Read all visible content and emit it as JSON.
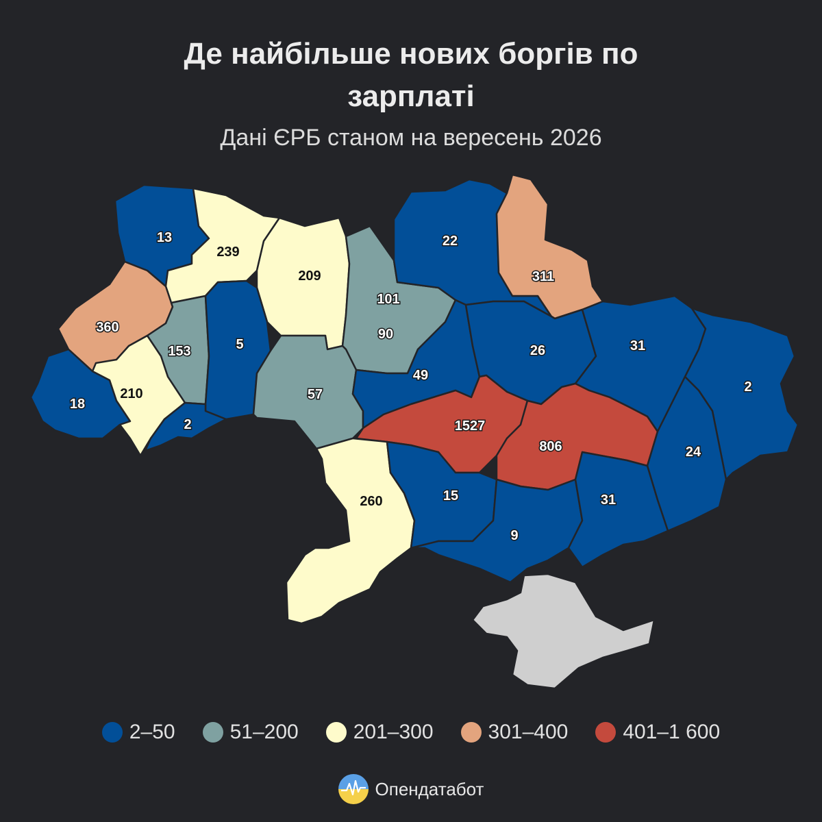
{
  "title_line1": "Де найбільше нових боргів по",
  "title_line2": "зарплаті",
  "subtitle": "Дані ЄРБ станом на вересень 2026",
  "colors": {
    "background": "#232428",
    "c2_50": "#024f98",
    "c51_200": "#7fa1a1",
    "c201_300": "#fefbcb",
    "c301_400": "#e3a47e",
    "c401_1600": "#c44a3d",
    "no_data": "#cfcfcf",
    "label_light": "#ffffff",
    "label_dark": "#111111"
  },
  "legend": [
    {
      "label": "2–50",
      "color": "#024f98"
    },
    {
      "label": "51–200",
      "color": "#7fa1a1"
    },
    {
      "label": "201–300",
      "color": "#fefbcb"
    },
    {
      "label": "301–400",
      "color": "#e3a47e"
    },
    {
      "label": "401–1 600",
      "color": "#c44a3d"
    }
  ],
  "regions": [
    {
      "id": "volyn",
      "value": 13,
      "label": "13"
    },
    {
      "id": "rivne",
      "value": 239,
      "label": "239"
    },
    {
      "id": "zhytomyr",
      "value": 209,
      "label": "209"
    },
    {
      "id": "kyiv",
      "value": 101,
      "label": "101"
    },
    {
      "id": "kyiv-city",
      "value": 90,
      "label": "90"
    },
    {
      "id": "chernihiv",
      "value": 22,
      "label": "22"
    },
    {
      "id": "sumy",
      "value": 311,
      "label": "311"
    },
    {
      "id": "lviv",
      "value": 360,
      "label": "360"
    },
    {
      "id": "ternopil",
      "value": 153,
      "label": "153"
    },
    {
      "id": "khmelnytskyi",
      "value": 5,
      "label": "5"
    },
    {
      "id": "vinnytsia",
      "value": 57,
      "label": "57"
    },
    {
      "id": "cherkasy",
      "value": 49,
      "label": "49"
    },
    {
      "id": "poltava",
      "value": 26,
      "label": "26"
    },
    {
      "id": "kharkiv",
      "value": 31,
      "label": "31"
    },
    {
      "id": "luhansk",
      "value": 2,
      "label": "2"
    },
    {
      "id": "zakarpattia",
      "value": 18,
      "label": "18"
    },
    {
      "id": "ivano-frankivsk",
      "value": 210,
      "label": "210"
    },
    {
      "id": "chernivtsi",
      "value": 2,
      "label": "2"
    },
    {
      "id": "kirovohrad",
      "value": 1527,
      "label": "1527"
    },
    {
      "id": "dnipropetrovsk",
      "value": 806,
      "label": "806"
    },
    {
      "id": "donetsk",
      "value": 24,
      "label": "24"
    },
    {
      "id": "odesa",
      "value": 260,
      "label": "260"
    },
    {
      "id": "mykolaiv",
      "value": 15,
      "label": "15"
    },
    {
      "id": "kherson",
      "value": 9,
      "label": "9"
    },
    {
      "id": "zaporizhzhia",
      "value": 31,
      "label": "31"
    },
    {
      "id": "crimea",
      "value": null,
      "label": ""
    }
  ],
  "brand": {
    "name": "Опендатабот"
  }
}
